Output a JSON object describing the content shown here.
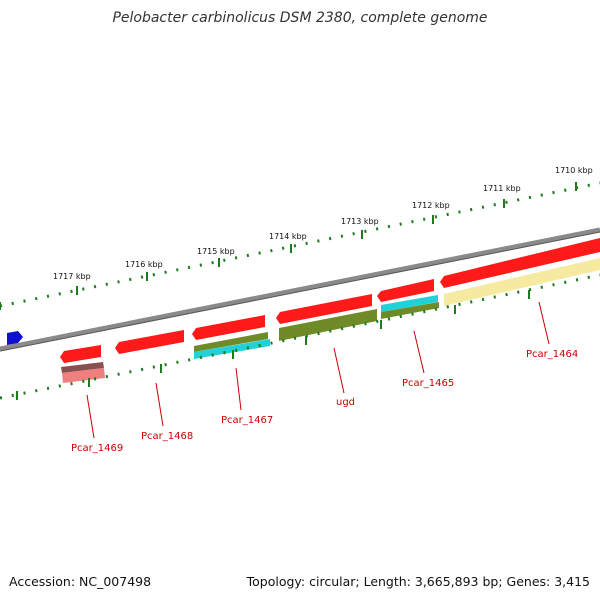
{
  "title": "Pelobacter carbinolicus DSM 2380, complete genome",
  "footer": {
    "accession": "Accession: NC_007498",
    "summary": "Topology: circular; Length: 3,665,893 bp; Genes: 3,415"
  },
  "colors": {
    "backbone": "#8a8a8a",
    "gene_red": "#ff1a1a",
    "gene_pink": "#f08080",
    "olive": "#6e8b27",
    "cyan": "#22d0d8",
    "pale_yellow": "#f5eaa0",
    "tick": "#1e7a1e",
    "blue_marker": "#1010d0",
    "label": "#cc0000"
  },
  "kbp_labels": [
    "1710 kbp",
    "1711 kbp",
    "1712 kbp",
    "1713 kbp",
    "1714 kbp",
    "1715 kbp",
    "1716 kbp",
    "1717 kbp"
  ],
  "genes": [
    "Pcar_1464",
    "Pcar_1465",
    "ugd",
    "Pcar_1467",
    "Pcar_1468",
    "Pcar_1469"
  ]
}
